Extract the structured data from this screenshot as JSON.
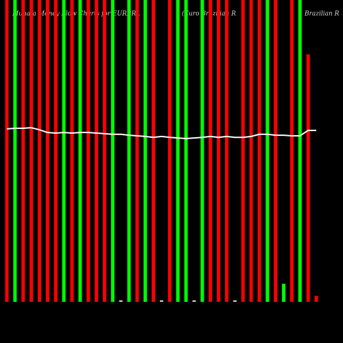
{
  "chart_data": {
    "type": "bar",
    "title": "Munafa Money Flow Charts for EURBRL",
    "subtitle": "(Euro Brazilian R",
    "annotation": "Brazilian R",
    "categories": [
      null,
      null,
      null,
      null,
      null,
      null,
      null,
      null,
      null,
      null,
      null,
      null,
      null,
      null,
      null,
      null,
      null,
      null,
      null,
      null,
      null,
      null,
      null,
      null,
      null,
      null,
      null,
      null,
      null,
      null,
      null,
      null,
      null,
      null,
      null,
      null,
      null,
      null,
      null
    ],
    "values": [
      100,
      100,
      100,
      100,
      100,
      100,
      100,
      100,
      100,
      100,
      100,
      100,
      100,
      100,
      0.5,
      100,
      100,
      100,
      100,
      0.5,
      100,
      100,
      100,
      0.5,
      100,
      100,
      100,
      100,
      0.5,
      100,
      100,
      100,
      100,
      100,
      6,
      100,
      100,
      82,
      2
    ],
    "colors": [
      "#ff0000",
      "#00ff00",
      "#ff0000",
      "#ff0000",
      "#ff0000",
      "#ff0000",
      "#ff0000",
      "#00ff00",
      "#ff0000",
      "#00ff00",
      "#ff0000",
      "#ff0000",
      "#ff0000",
      "#00ff00",
      "#cccccc",
      "#00ff00",
      "#ff0000",
      "#00ff00",
      "#ff0000",
      "#cccccc",
      "#ff0000",
      "#00ff00",
      "#00ff00",
      "#cccccc",
      "#00ff00",
      "#ff0000",
      "#ff0000",
      "#ff0000",
      "#cccccc",
      "#ff0000",
      "#ff0000",
      "#ff0000",
      "#00ff00",
      "#ff0000",
      "#00ff00",
      "#ff0000",
      "#00ff00",
      "#ff0000",
      "#ff0000"
    ],
    "ylim": [
      0,
      100
    ],
    "line": {
      "color": "#ffffff",
      "axis": "y2",
      "values": [
        57.3,
        57.5,
        57.5,
        57.7,
        57.0,
        56.1,
        55.9,
        56.1,
        55.9,
        56.1,
        56.1,
        55.9,
        55.7,
        55.5,
        55.5,
        55.2,
        55.0,
        54.8,
        54.5,
        54.8,
        54.5,
        54.3,
        54.1,
        54.3,
        54.5,
        54.8,
        54.5,
        54.8,
        54.5,
        54.5,
        54.8,
        55.5,
        55.5,
        55.2,
        55.2,
        55.0,
        55.0,
        56.8,
        56.8
      ]
    },
    "y2lim": [
      0,
      100
    ]
  }
}
